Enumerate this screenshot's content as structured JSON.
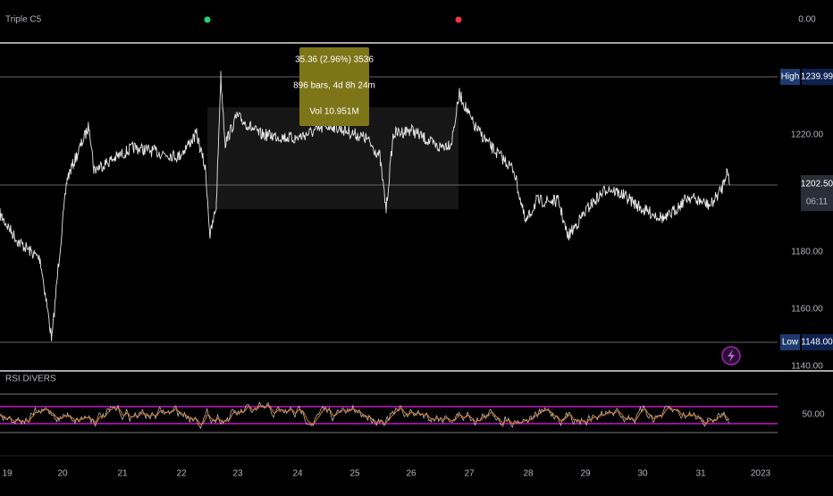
{
  "indicator_strip": {
    "title": "Triple C5",
    "value": "0.00"
  },
  "tooltip": {
    "line1": "35.36 (2.96%) 3536",
    "line2": "896 bars, 4d 8h 24m",
    "line3": "Vol 10.951M"
  },
  "price_axis": {
    "ticks": [
      "1220.00",
      "1180.00",
      "1160.00",
      "1140.00"
    ],
    "high": {
      "label": "High",
      "value": "1239.99"
    },
    "low": {
      "label": "Low",
      "value": "1148.00"
    },
    "last": {
      "value": "1202.50",
      "countdown": "06:11"
    }
  },
  "rsi_pane": {
    "title": "RSI DIVERS",
    "tick": "50.00"
  },
  "time_axis": {
    "ticks": [
      "19",
      "20",
      "21",
      "22",
      "23",
      "24",
      "25",
      "26",
      "27",
      "28",
      "29",
      "30",
      "31",
      "2023"
    ]
  }
}
